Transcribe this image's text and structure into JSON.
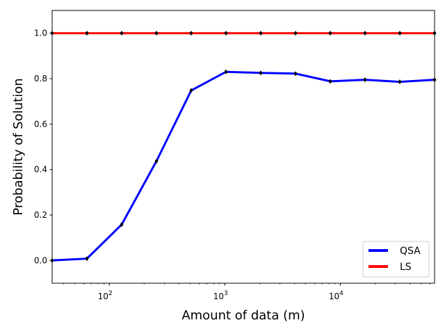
{
  "chart_data": {
    "type": "line",
    "title": "",
    "xlabel": "Amount of data (m)",
    "ylabel": "Probability of Solution",
    "xscale": "log",
    "xlim": [
      32,
      65536
    ],
    "ylim": [
      -0.1,
      1.1
    ],
    "x": [
      32,
      64,
      128,
      256,
      512,
      1024,
      2048,
      4096,
      8192,
      16384,
      32768,
      65536
    ],
    "series": [
      {
        "name": "QSA",
        "color": "#0000ff",
        "values": [
          0.0,
          0.008,
          0.158,
          0.437,
          0.748,
          0.83,
          0.825,
          0.822,
          0.788,
          0.795,
          0.786,
          0.795
        ]
      },
      {
        "name": "LS",
        "color": "#ff0000",
        "values": [
          1.0,
          1.0,
          1.0,
          1.0,
          1.0,
          1.0,
          1.0,
          1.0,
          1.0,
          1.0,
          1.0,
          1.0
        ]
      }
    ],
    "yticks": [
      "0.0",
      "0.2",
      "0.4",
      "0.6",
      "0.8",
      "1.0"
    ],
    "xticks": [
      {
        "base": "10",
        "exp": "2",
        "value": 100
      },
      {
        "base": "10",
        "exp": "3",
        "value": 1000
      },
      {
        "base": "10",
        "exp": "4",
        "value": 10000
      }
    ],
    "grid": false,
    "legend": "bottom-right"
  }
}
